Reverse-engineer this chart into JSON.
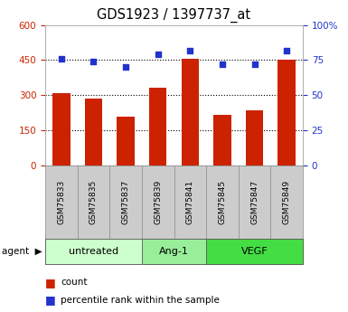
{
  "title": "GDS1923 / 1397737_at",
  "samples": [
    "GSM75833",
    "GSM75835",
    "GSM75837",
    "GSM75839",
    "GSM75841",
    "GSM75845",
    "GSM75847",
    "GSM75849"
  ],
  "counts": [
    310,
    285,
    210,
    330,
    455,
    215,
    235,
    450
  ],
  "percentiles": [
    76,
    74,
    70,
    79,
    82,
    72,
    72,
    82
  ],
  "groups": [
    {
      "label": "untreated",
      "start": 0,
      "end": 3,
      "color": "#ccffcc"
    },
    {
      "label": "Ang-1",
      "start": 3,
      "end": 5,
      "color": "#99ee99"
    },
    {
      "label": "VEGF",
      "start": 5,
      "end": 8,
      "color": "#44dd44"
    }
  ],
  "ylim_left": [
    0,
    600
  ],
  "ylim_right": [
    0,
    100
  ],
  "yticks_left": [
    0,
    150,
    300,
    450,
    600
  ],
  "yticks_right": [
    0,
    25,
    50,
    75,
    100
  ],
  "ytick_labels_left": [
    "0",
    "150",
    "300",
    "450",
    "600"
  ],
  "ytick_labels_right": [
    "0",
    "25",
    "50",
    "75",
    "100%"
  ],
  "bar_color": "#cc2200",
  "dot_color": "#2233cc",
  "grid_color": "#000000",
  "bg_color": "#ffffff",
  "plot_bg": "#ffffff",
  "sample_bg": "#cccccc",
  "tick_label_color_left": "#cc2200",
  "tick_label_color_right": "#2233cc",
  "bar_width": 0.55,
  "agent_label": "agent",
  "legend_count": "count",
  "legend_pct": "percentile rank within the sample"
}
